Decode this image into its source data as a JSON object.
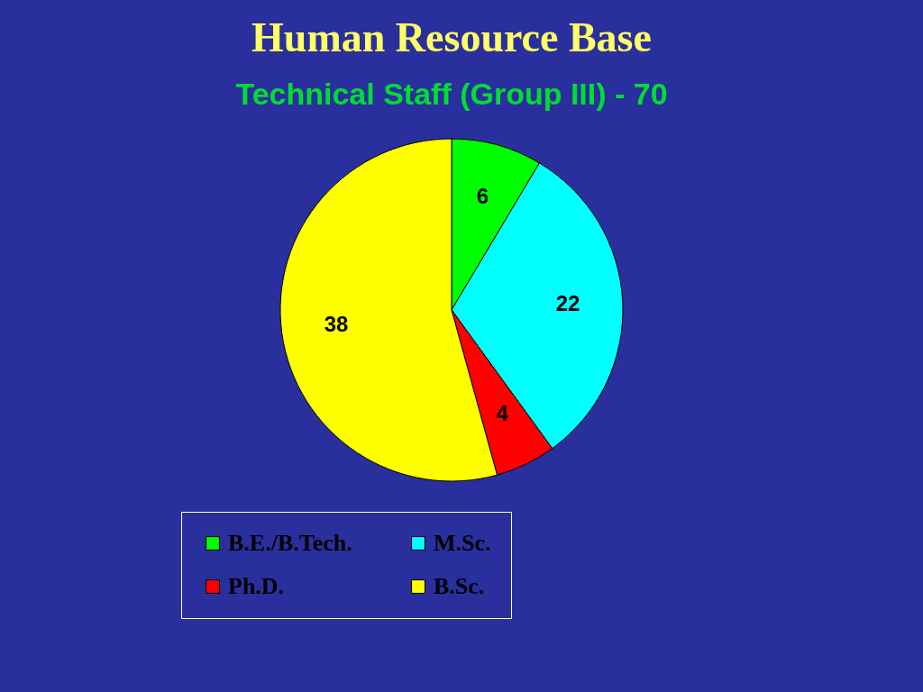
{
  "chart_data": {
    "type": "pie",
    "title": "Human Resource Base",
    "subtitle": "Technical Staff (Group III) - 70",
    "categories": [
      "B.E./B.Tech.",
      "M.Sc.",
      "Ph.D.",
      "B.Sc."
    ],
    "values": [
      6,
      22,
      4,
      38
    ],
    "colors": [
      "#00ff00",
      "#00ffff",
      "#ff0000",
      "#ffff00"
    ],
    "data_labels": true,
    "legend": "bottom"
  }
}
